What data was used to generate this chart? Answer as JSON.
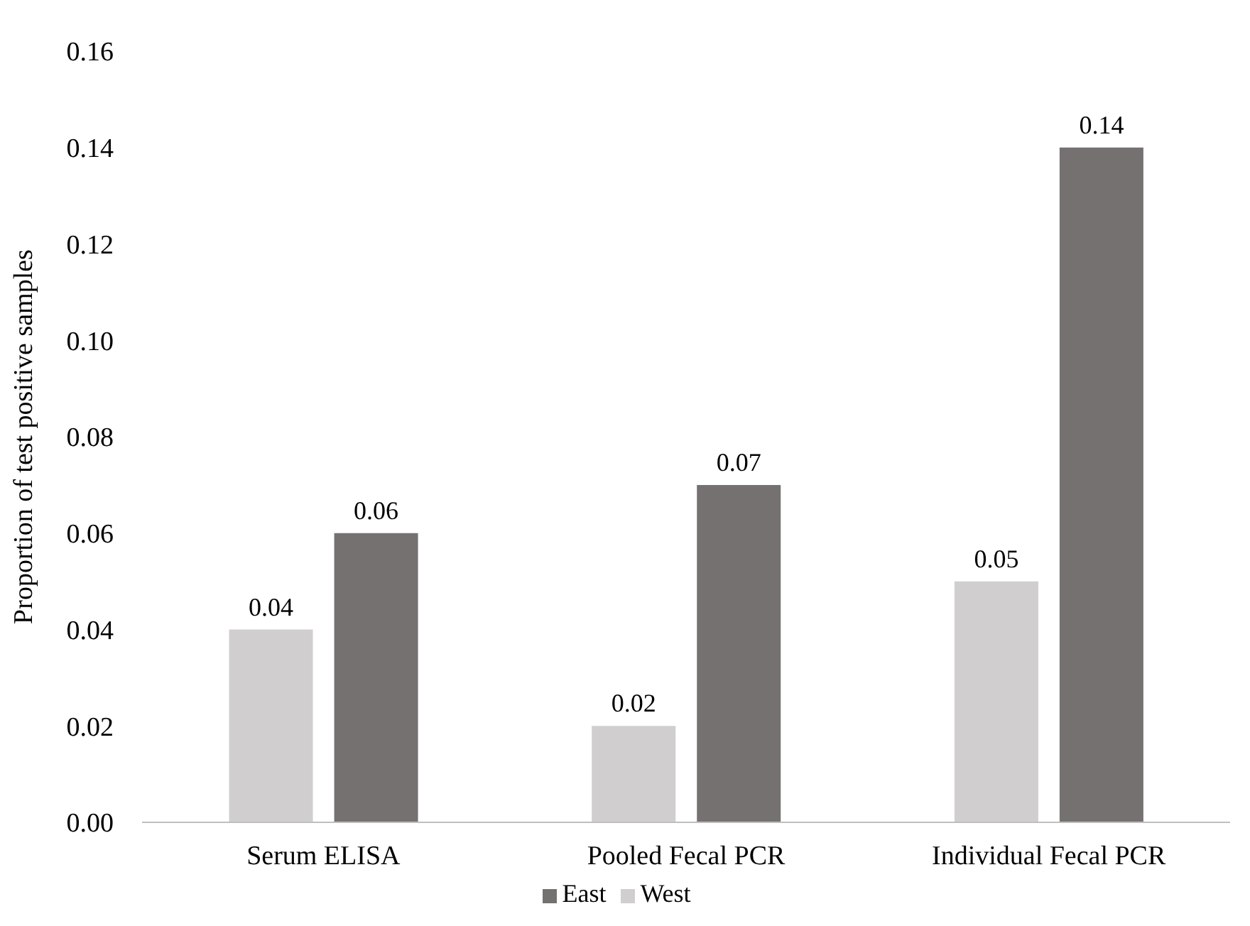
{
  "chart_data": {
    "type": "bar",
    "ylabel": "Proportion of test positive samples",
    "categories": [
      "Serum ELISA",
      "Pooled Fecal PCR",
      "Individual Fecal PCR"
    ],
    "series": [
      {
        "name": "West",
        "color": "#d0cece",
        "values": [
          0.04,
          0.02,
          0.05
        ]
      },
      {
        "name": "East",
        "color": "#767171",
        "values": [
          0.06,
          0.07,
          0.14
        ]
      }
    ],
    "ylim": [
      0,
      0.16
    ],
    "yticks": [
      {
        "value": 0,
        "label": "0.00"
      },
      {
        "value": 0.02,
        "label": "0.02"
      },
      {
        "value": 0.04,
        "label": "0.04"
      },
      {
        "value": 0.06,
        "label": "0.06"
      },
      {
        "value": 0.08,
        "label": "0.08"
      },
      {
        "value": 0.1,
        "label": "0.10"
      },
      {
        "value": 0.12,
        "label": "0.12"
      },
      {
        "value": 0.14,
        "label": "0.14"
      },
      {
        "value": 0.16,
        "label": "0.16"
      }
    ],
    "data_labels": true,
    "legend": "bottom"
  }
}
